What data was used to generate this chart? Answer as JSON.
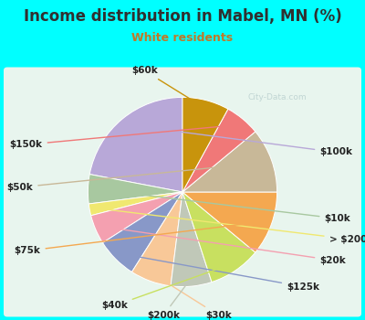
{
  "title": "Income distribution in Mabel, MN (%)",
  "subtitle": "White residents",
  "background_color": "#00FFFF",
  "watermark": "City-Data.com",
  "labels": [
    "$100k",
    "$10k",
    "> $200k",
    "$20k",
    "$125k",
    "$30k",
    "$200k",
    "$40k",
    "$75k",
    "$50k",
    "$150k",
    "$60k"
  ],
  "values": [
    22,
    5,
    2,
    5,
    7,
    7,
    7,
    9,
    11,
    11,
    6,
    8
  ],
  "colors": [
    "#b8a8d8",
    "#a8c8a0",
    "#f0e870",
    "#f4a0b0",
    "#8898c8",
    "#f8c898",
    "#c0c8b8",
    "#c8e060",
    "#f4a850",
    "#c8b898",
    "#f07878",
    "#c8940c"
  ],
  "startangle": 90,
  "label_fontsize": 7.5,
  "title_fontsize": 12,
  "subtitle_fontsize": 9,
  "title_color": "#303030",
  "subtitle_color": "#c07828"
}
